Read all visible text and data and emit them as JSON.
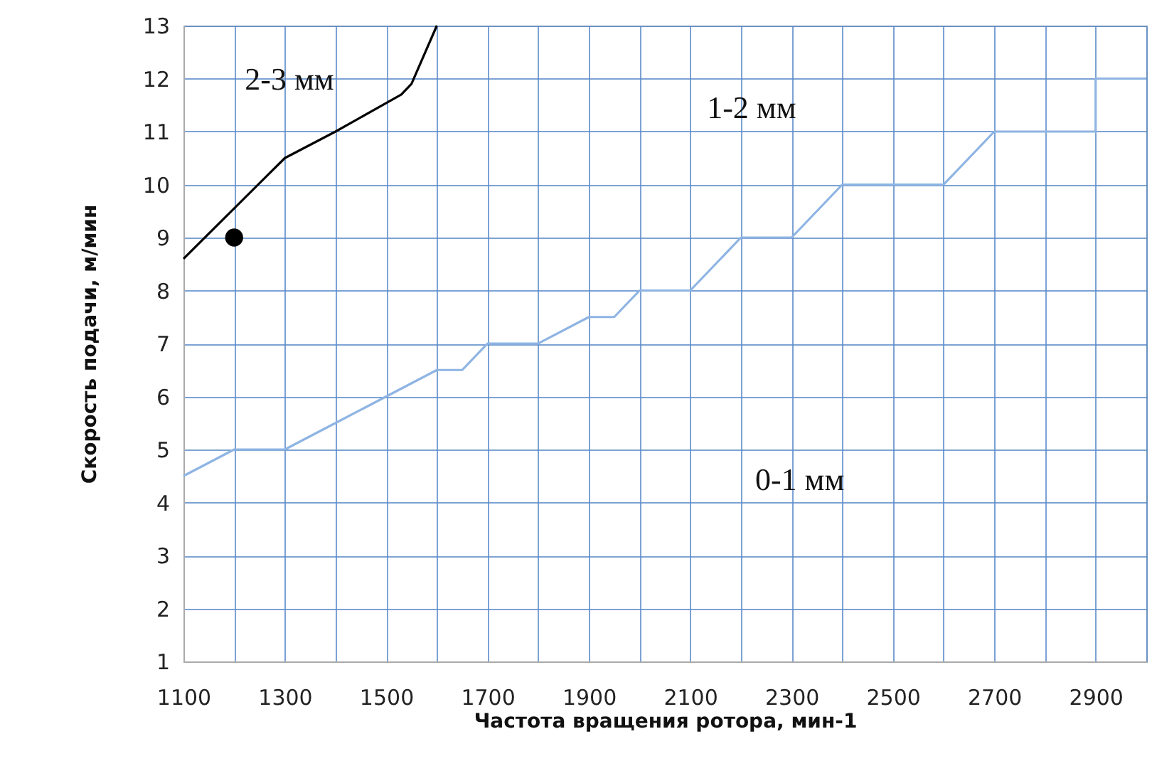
{
  "chart_data": {
    "type": "line",
    "xlabel": "Частота вращения ротора, мин-1",
    "ylabel": "Скорость  подачи,  м/мин",
    "xlim": [
      1100,
      3000
    ],
    "ylim": [
      1,
      13
    ],
    "xticks": [
      1100,
      {
        "value": 1200,
        "label": null
      },
      1300,
      {
        "value": 1400,
        "label": null
      },
      1500,
      {
        "value": 1600,
        "label": null
      },
      1700,
      {
        "value": 1800,
        "label": null
      },
      1900,
      {
        "value": 2000,
        "label": null
      },
      2100,
      {
        "value": 2200,
        "label": null
      },
      2300,
      {
        "value": 2400,
        "label": null
      },
      2500,
      {
        "value": 2600,
        "label": null
      },
      2700,
      {
        "value": 2800,
        "label": null
      },
      2900,
      {
        "value": 3000,
        "label": null
      }
    ],
    "yticks": [
      1,
      2,
      3,
      4,
      5,
      6,
      7,
      8,
      9,
      10,
      11,
      12,
      13
    ],
    "grid": true,
    "series": [
      {
        "color": "#8eb4e3",
        "x": [
          1100,
          1200,
          1300,
          1400,
          1500,
          1600,
          1650,
          1700,
          1800,
          1900,
          1950,
          2000,
          2100,
          2200,
          2300,
          2400,
          2600,
          2700,
          2900,
          2900,
          3000
        ],
        "values": [
          4.5,
          5,
          5,
          5.5,
          6,
          6.5,
          6.5,
          7,
          7,
          7.5,
          7.5,
          8,
          8,
          9,
          9,
          10,
          10,
          11,
          11,
          12,
          12
        ]
      },
      {
        "color": "#000000",
        "x": [
          1100,
          1300,
          1400,
          1530,
          1550,
          1600
        ],
        "values": [
          8.6,
          10.5,
          11,
          11.7,
          11.9,
          13
        ]
      },
      {
        "type": "scatter",
        "color": "#000000",
        "marker": "circle",
        "x": [
          1200
        ],
        "values": [
          9
        ]
      }
    ],
    "annotations": [
      "2-3 мм",
      "1-2 мм",
      "0-1 мм"
    ]
  }
}
